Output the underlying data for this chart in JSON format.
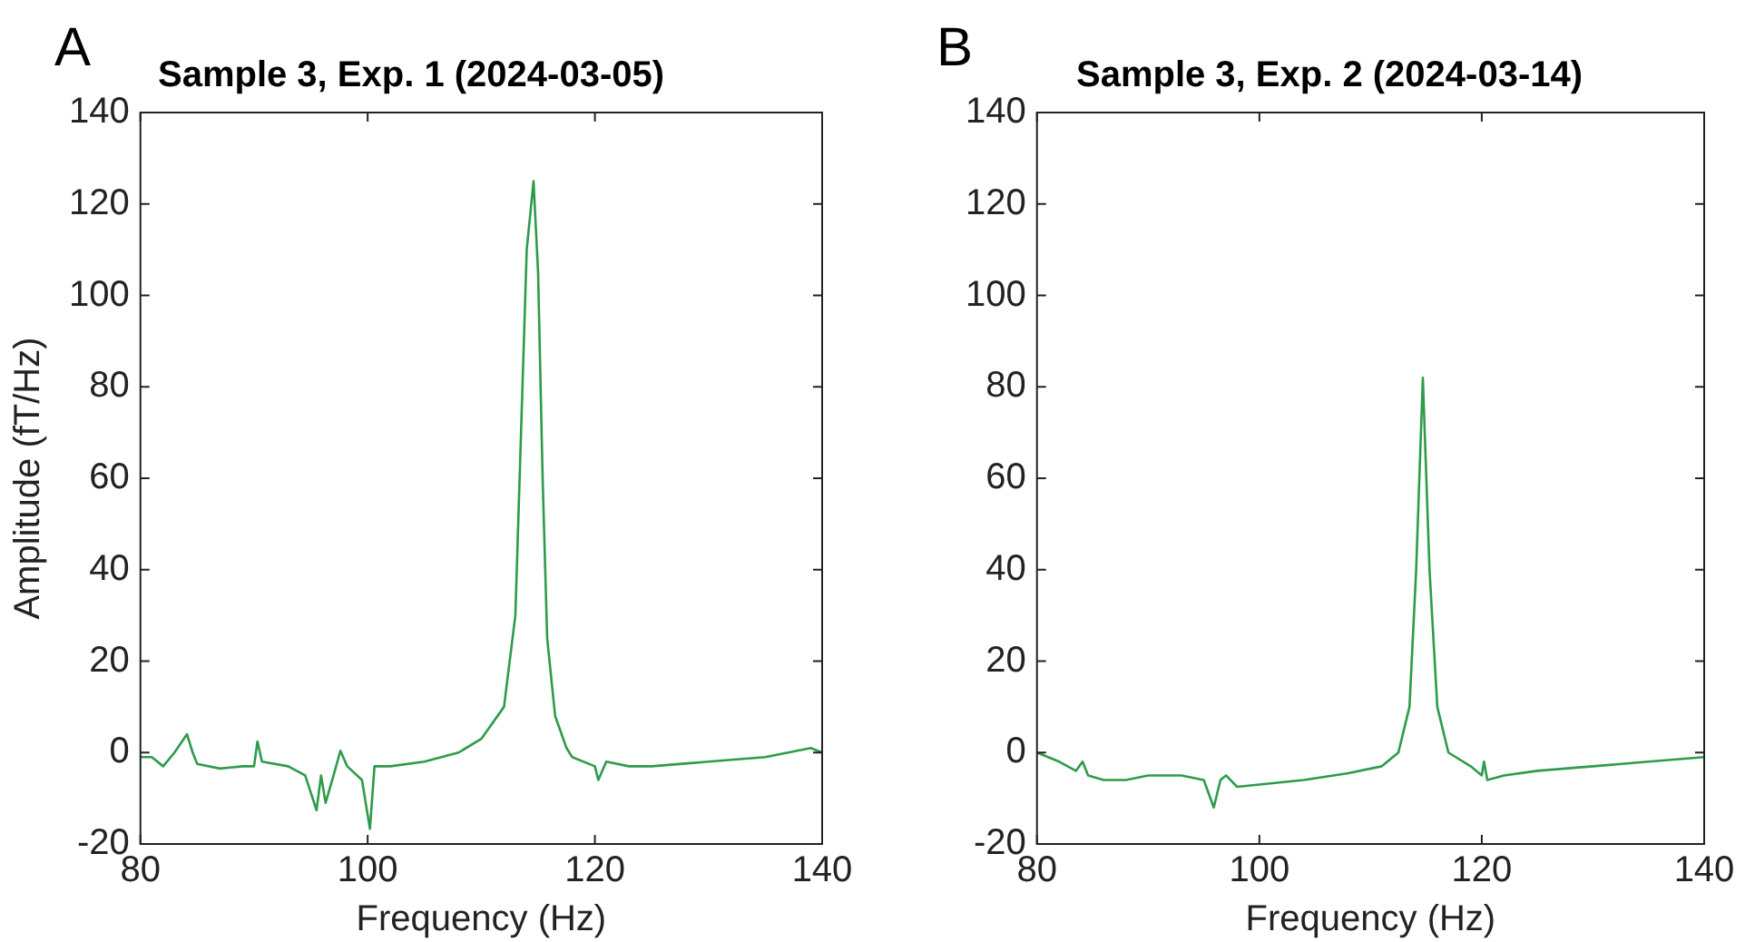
{
  "chart_data": [
    {
      "type": "line",
      "title": "Sample 3, Exp. 1 (2024-03-05)",
      "xlabel": "Frequency (Hz)",
      "ylabel": "Amplitude (fT/Hz)",
      "annotations": [
        "A"
      ],
      "xlim": [
        80,
        140
      ],
      "xticks": [
        80,
        100,
        120,
        140
      ],
      "ylim": [
        -20,
        140
      ],
      "yticks": [
        -20,
        0,
        20,
        40,
        60,
        80,
        100,
        120,
        140
      ],
      "grid": false,
      "legend": false,
      "marker": "none",
      "line_style": "solid",
      "series": [
        {
          "color": "#2e9b4a",
          "x": [
            80,
            81,
            82,
            83,
            84.1,
            84.6,
            85,
            87,
            89,
            90,
            90.3,
            90.7,
            93,
            94.5,
            95.5,
            95.9,
            96.3,
            97,
            97.6,
            98.2,
            99.5,
            100.2,
            100.6,
            102,
            105,
            108,
            110,
            112,
            113,
            113.5,
            114,
            114.6,
            115,
            115.4,
            115.8,
            116.5,
            117.5,
            118,
            120,
            120.3,
            121,
            123,
            125,
            130,
            135,
            139,
            140
          ],
          "values": [
            -1,
            -1,
            -3,
            0,
            4,
            0,
            -2.5,
            -3.5,
            -3,
            -3,
            2.4,
            -2,
            -3,
            -5,
            -12.6,
            -5,
            -11,
            -5,
            0.4,
            -3,
            -6,
            -16.7,
            -3,
            -3,
            -2,
            0,
            3,
            10,
            30,
            70,
            110,
            125,
            105,
            60,
            25,
            8,
            1,
            -1,
            -3,
            -6,
            -2,
            -3,
            -3,
            -2,
            -1,
            1,
            0
          ]
        }
      ]
    },
    {
      "type": "line",
      "title": "Sample 3, Exp. 2 (2024-03-14)",
      "xlabel": "Frequency (Hz)",
      "annotations": [
        "B"
      ],
      "xlim": [
        80,
        140
      ],
      "xticks": [
        80,
        100,
        120,
        140
      ],
      "ylim": [
        -20,
        140
      ],
      "yticks": [
        -20,
        0,
        20,
        40,
        60,
        80,
        100,
        120,
        140
      ],
      "grid": false,
      "legend": false,
      "marker": "none",
      "line_style": "solid",
      "series": [
        {
          "color": "#2e9b4a",
          "x": [
            80,
            82,
            83.5,
            84.1,
            84.6,
            86,
            88,
            90,
            93,
            95,
            95.9,
            96.5,
            97,
            98,
            100,
            104,
            108,
            111,
            112.5,
            113.5,
            114.1,
            114.7,
            115.3,
            116,
            117,
            119,
            120,
            120.2,
            120.5,
            122,
            125,
            130,
            135,
            140
          ],
          "values": [
            0,
            -2,
            -4,
            -2,
            -5,
            -6,
            -6,
            -5,
            -5,
            -6,
            -12,
            -6,
            -5,
            -7.5,
            -7,
            -6,
            -4.5,
            -3,
            0,
            10,
            40,
            82,
            40,
            10,
            0,
            -3,
            -5,
            -2,
            -6,
            -5,
            -4,
            -3,
            -2,
            -1
          ]
        }
      ]
    }
  ]
}
